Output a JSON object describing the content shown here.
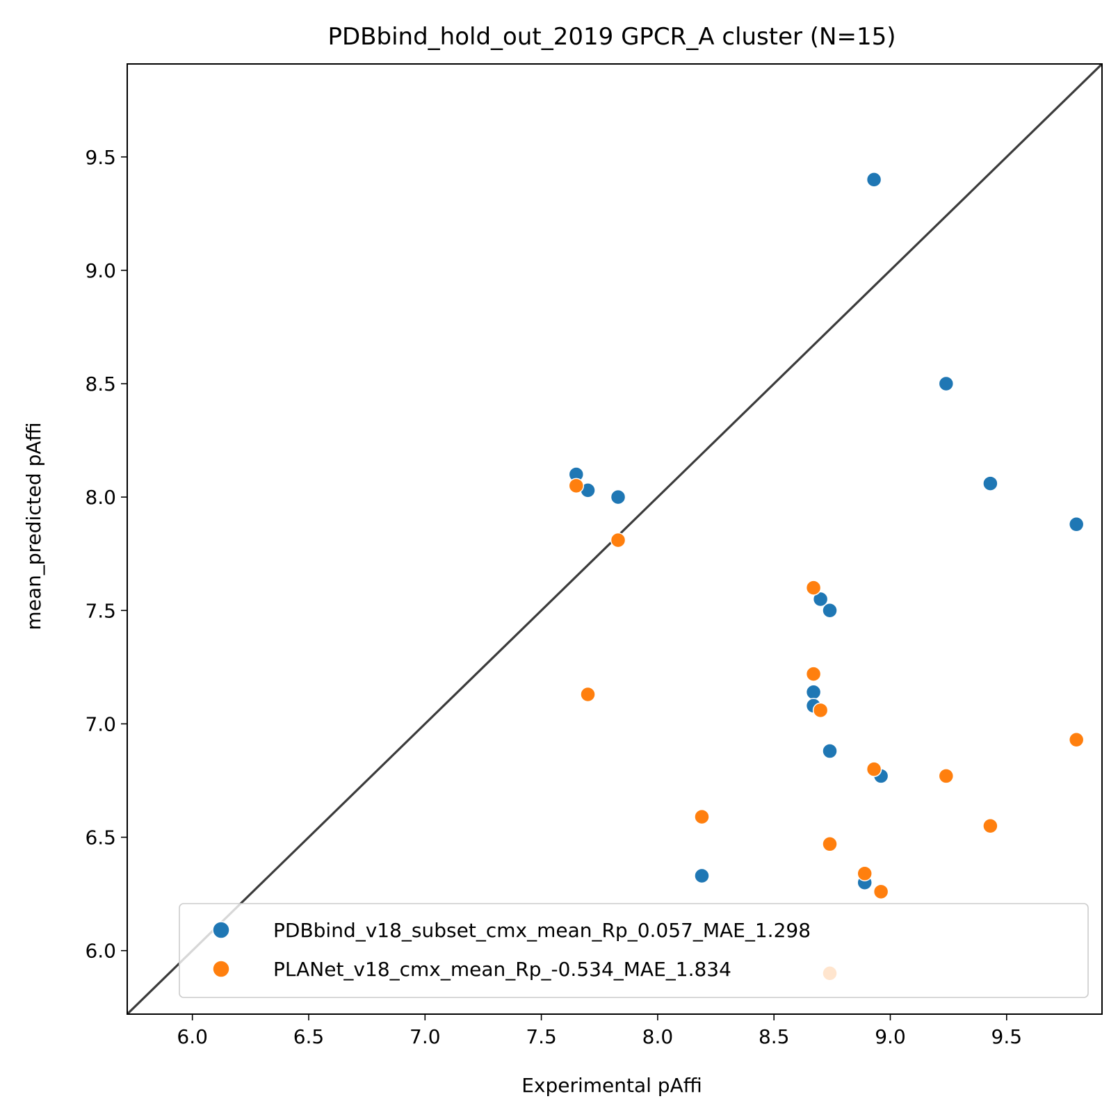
{
  "chart_data": {
    "type": "scatter",
    "title": "PDBbind_hold_out_2019 GPCR_A cluster (N=15)",
    "xlabel": "Experimental pAffi",
    "ylabel": "mean_predicted pAffi",
    "xlim": [
      5.72,
      9.91
    ],
    "ylim": [
      5.72,
      9.91
    ],
    "xticks": [
      "6.0",
      "6.5",
      "7.0",
      "7.5",
      "8.0",
      "8.5",
      "9.0",
      "9.5"
    ],
    "yticks": [
      "6.0",
      "6.5",
      "7.0",
      "7.5",
      "8.0",
      "8.5",
      "9.0",
      "9.5"
    ],
    "xtick_values": [
      6.0,
      6.5,
      7.0,
      7.5,
      8.0,
      8.5,
      9.0,
      9.5
    ],
    "ytick_values": [
      6.0,
      6.5,
      7.0,
      7.5,
      8.0,
      8.5,
      9.0,
      9.5
    ],
    "diagonal": true,
    "grid": false,
    "legend_position": "lower-right",
    "series": [
      {
        "name": "PDBbind_v18_subset_cmx_mean_Rp_0.057_MAE_1.298",
        "color": "#1f77b4",
        "points": [
          {
            "x": 8.93,
            "y": 9.4
          },
          {
            "x": 9.24,
            "y": 8.5
          },
          {
            "x": 7.65,
            "y": 8.1
          },
          {
            "x": 7.7,
            "y": 8.03
          },
          {
            "x": 7.83,
            "y": 8.0
          },
          {
            "x": 9.43,
            "y": 8.06
          },
          {
            "x": 9.8,
            "y": 7.88
          },
          {
            "x": 8.7,
            "y": 7.55
          },
          {
            "x": 8.74,
            "y": 7.5
          },
          {
            "x": 8.67,
            "y": 7.14
          },
          {
            "x": 8.67,
            "y": 7.08
          },
          {
            "x": 8.74,
            "y": 6.88
          },
          {
            "x": 8.96,
            "y": 6.77
          },
          {
            "x": 8.19,
            "y": 6.33
          },
          {
            "x": 8.89,
            "y": 6.3
          }
        ]
      },
      {
        "name": "PLANet_v18_cmx_mean_Rp_-0.534_MAE_1.834",
        "color": "#ff7f0e",
        "points": [
          {
            "x": 7.65,
            "y": 8.05
          },
          {
            "x": 7.83,
            "y": 7.81
          },
          {
            "x": 8.67,
            "y": 7.6
          },
          {
            "x": 8.67,
            "y": 7.22
          },
          {
            "x": 7.7,
            "y": 7.13
          },
          {
            "x": 8.7,
            "y": 7.06
          },
          {
            "x": 9.8,
            "y": 6.93
          },
          {
            "x": 8.93,
            "y": 6.8
          },
          {
            "x": 9.24,
            "y": 6.77
          },
          {
            "x": 8.19,
            "y": 6.59
          },
          {
            "x": 9.43,
            "y": 6.55
          },
          {
            "x": 8.74,
            "y": 6.47
          },
          {
            "x": 8.89,
            "y": 6.34
          },
          {
            "x": 8.96,
            "y": 6.26
          },
          {
            "x": 8.74,
            "y": 5.9
          }
        ]
      }
    ]
  }
}
